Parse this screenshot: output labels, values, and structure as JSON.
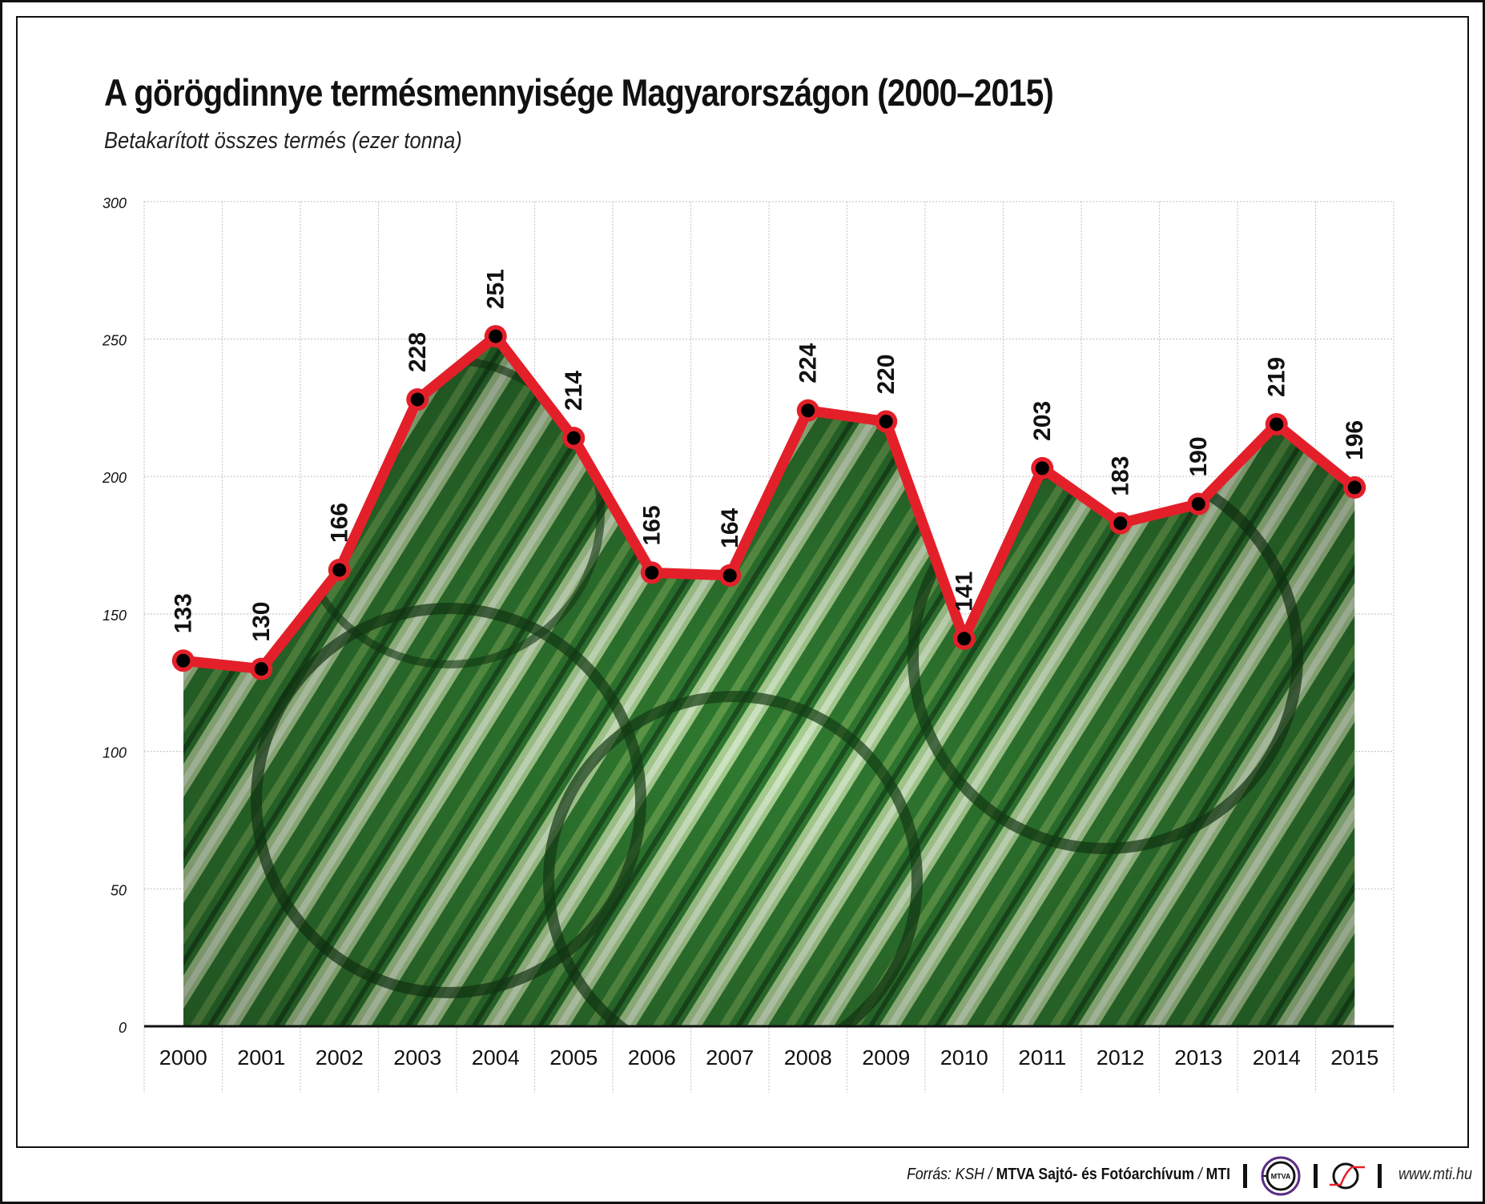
{
  "header": {
    "title": "A görögdinnye termésmennyisége Magyarországon (2000–2015)",
    "subtitle": "Betakarított összes termés (ezer tonna)"
  },
  "footer": {
    "source_prefix": "Forrás: KSH / ",
    "source_bold": "MTVA Sajtó- és Fotóarchívum",
    "source_sep": " / ",
    "source_end": "MTI",
    "mtva_logo_text": "MTVA",
    "url": "www.mti.hu"
  },
  "colors": {
    "line": "#e3202a",
    "marker": "#000000",
    "grid": "#c8c8c8",
    "fill_dark": "#1f5a22",
    "fill_mid": "#3f8a3a",
    "fill_light": "#b9d6a8",
    "mtva_ring": "#5a2d82"
  },
  "chart_data": {
    "type": "line",
    "title": "A görögdinnye termésmennyisége Magyarországon (2000–2015)",
    "subtitle": "Betakarított összes termés (ezer tonna)",
    "xlabel": "",
    "ylabel": "ezer tonna",
    "categories": [
      "2000",
      "2001",
      "2002",
      "2003",
      "2004",
      "2005",
      "2006",
      "2007",
      "2008",
      "2009",
      "2010",
      "2011",
      "2012",
      "2013",
      "2014",
      "2015"
    ],
    "series": [
      {
        "name": "Betakarított összes termés (ezer tonna)",
        "values": [
          133,
          130,
          166,
          228,
          251,
          214,
          165,
          164,
          224,
          220,
          141,
          203,
          183,
          190,
          219,
          196
        ]
      }
    ],
    "data_labels": [
      "133",
      "130",
      "166",
      "228",
      "251",
      "214",
      "165",
      "164",
      "224",
      "220",
      "141",
      "203",
      "183",
      "190",
      "219",
      "196"
    ],
    "yticks": [
      "0",
      "50",
      "100",
      "150",
      "200",
      "250",
      "300"
    ],
    "ylim": [
      0,
      300
    ],
    "grid": true,
    "area_fill": "watermelon photo under line",
    "legend": "none"
  }
}
